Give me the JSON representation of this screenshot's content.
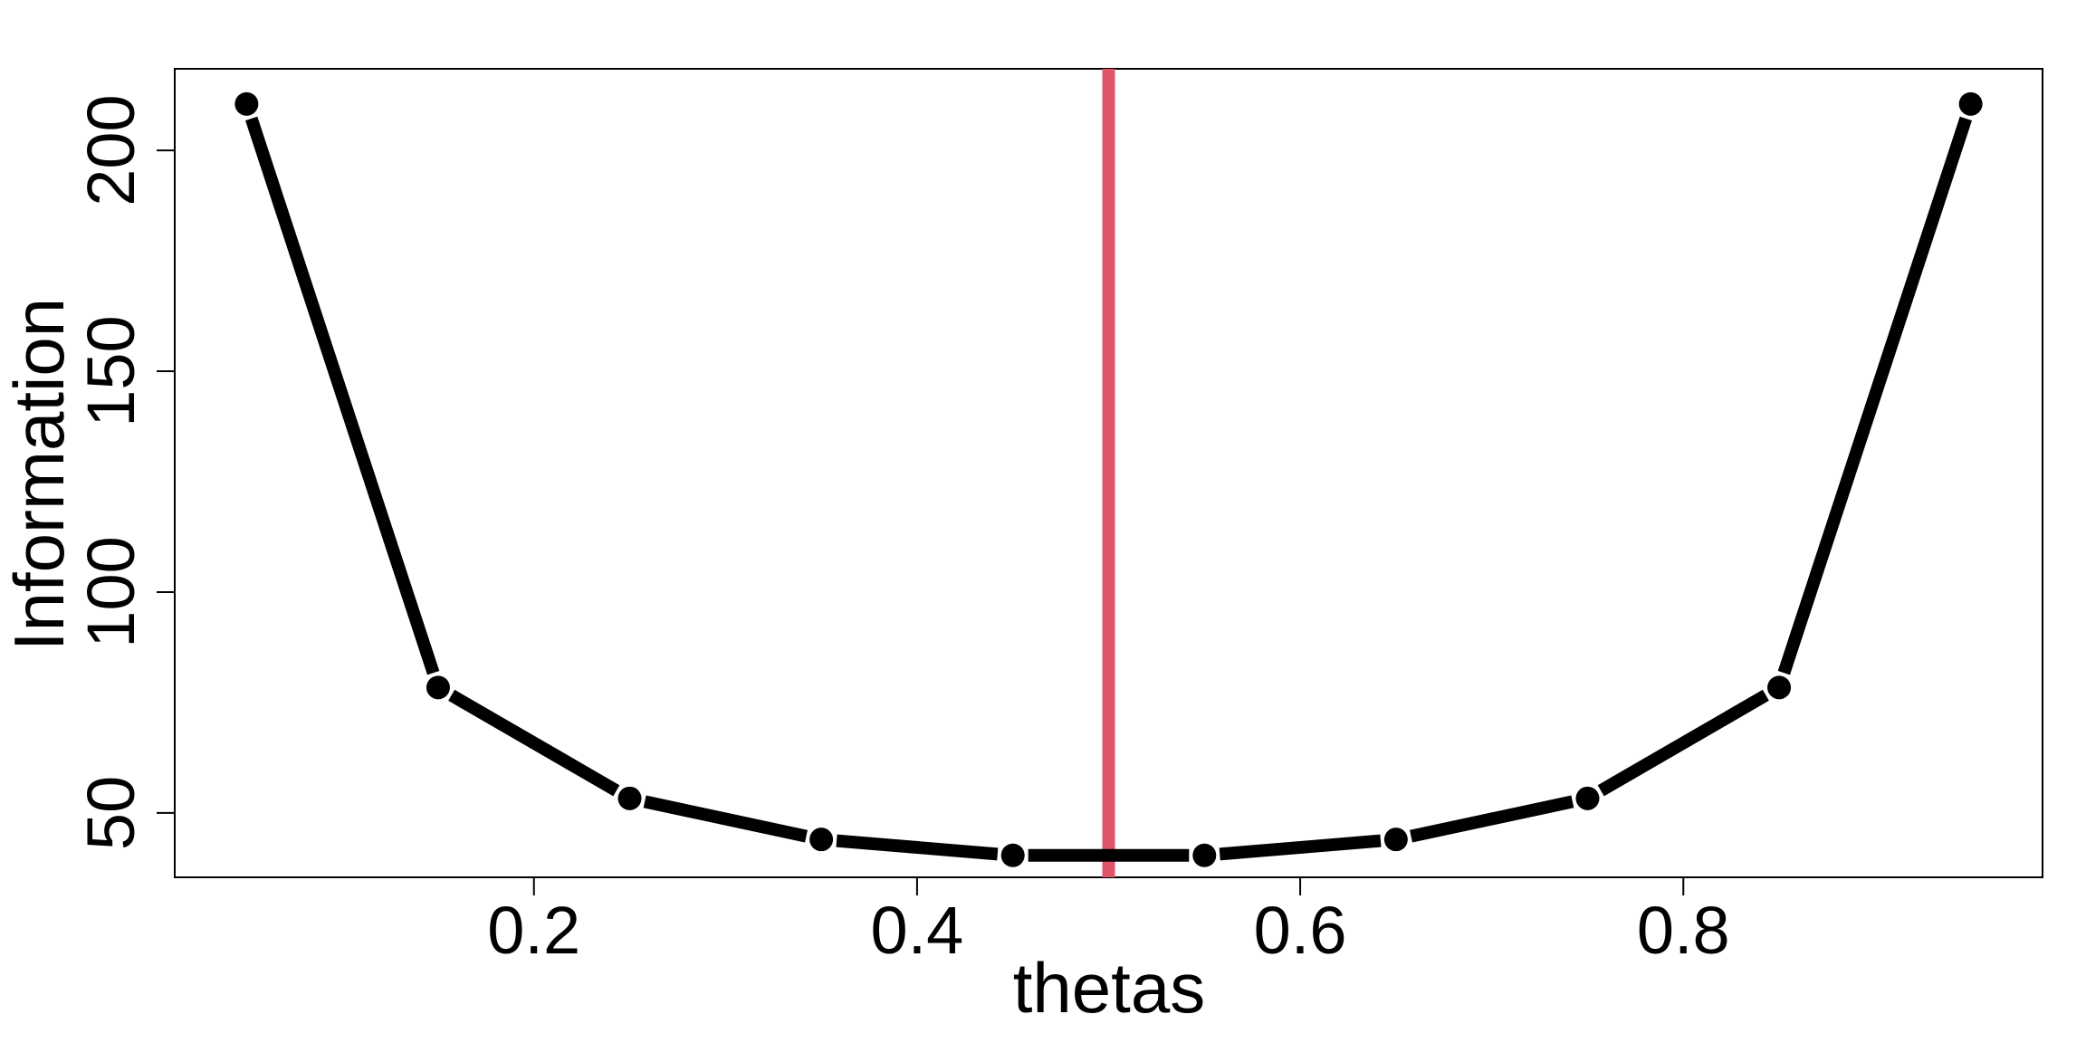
{
  "chart_data": {
    "type": "line",
    "title": "",
    "xlabel": "thetas",
    "ylabel": "Information",
    "xlim": [
      0.0125,
      0.9875
    ],
    "ylim": [
      35.43,
      218.46
    ],
    "x_ticks": [
      0.2,
      0.4,
      0.6,
      0.8
    ],
    "x_tick_labels": [
      "0.2",
      "0.4",
      "0.6",
      "0.8"
    ],
    "y_ticks": [
      50,
      100,
      150,
      200
    ],
    "y_tick_labels": [
      "50",
      "100",
      "150",
      "200"
    ],
    "grid": false,
    "series": [
      {
        "x": [
          0.05,
          0.15,
          0.25,
          0.35,
          0.45,
          0.55,
          0.65,
          0.75,
          0.85,
          0.95
        ],
        "values": [
          210.5,
          78.4,
          53.3,
          44.0,
          40.4,
          40.4,
          44.0,
          53.3,
          78.4,
          210.5
        ],
        "color": "#000000"
      }
    ],
    "vline": {
      "x": 0.5,
      "color": "#DF536B"
    }
  }
}
